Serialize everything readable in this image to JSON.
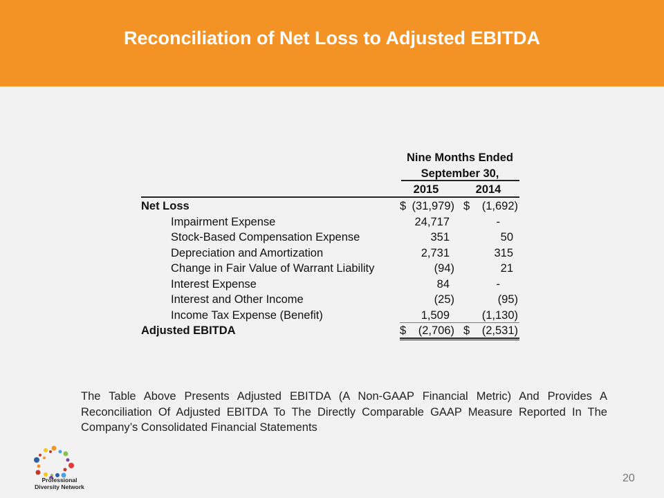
{
  "header": {
    "title": "Reconciliation of Net Loss to Adjusted EBITDA"
  },
  "table": {
    "period_line1": "Nine Months Ended",
    "period_line2": "September 30,",
    "columns": [
      "2015",
      "2014"
    ],
    "rows": [
      {
        "label": "Net Loss",
        "bold": true,
        "indent": false,
        "d1": "$",
        "v1": "(31,979)",
        "d2": "$",
        "v2": "(1,692)"
      },
      {
        "label": "Impairment Expense",
        "indent": true,
        "v1": "24,717",
        "v2": "-"
      },
      {
        "label": "Stock-Based Compensation Expense",
        "indent": true,
        "v1": "351",
        "v2": "50"
      },
      {
        "label": "Depreciation and Amortization",
        "indent": true,
        "v1": "2,731",
        "v2": "315"
      },
      {
        "label": "Change in Fair Value of Warrant Liability",
        "indent": true,
        "v1": "(94)",
        "v2": "21"
      },
      {
        "label": "Interest Expense",
        "indent": true,
        "v1": "84",
        "v2": "-"
      },
      {
        "label": "Interest and Other Income",
        "indent": true,
        "v1": "(25)",
        "v2": "(95)"
      },
      {
        "label": "Income Tax Expense (Benefit)",
        "indent": true,
        "v1": "1,509",
        "v2": "(1,130)"
      },
      {
        "label": "Adjusted EBITDA",
        "bold": true,
        "indent": false,
        "d1": "$",
        "v1": "(2,706)",
        "d2": "$",
        "v2": "(2,531)"
      }
    ]
  },
  "note": "The Table Above Presents Adjusted EBITDA (A Non-GAAP Financial Metric) And Provides A Reconciliation Of Adjusted EBITDA To The Directly Comparable GAAP Measure Reported In The Company’s Consolidated Financial Statements",
  "footer": {
    "page_number": "20",
    "logo_line1": "Professional",
    "logo_line2": "Diversity Network"
  },
  "colors": {
    "accent": "#f39325",
    "background": "#f2f2f2"
  }
}
